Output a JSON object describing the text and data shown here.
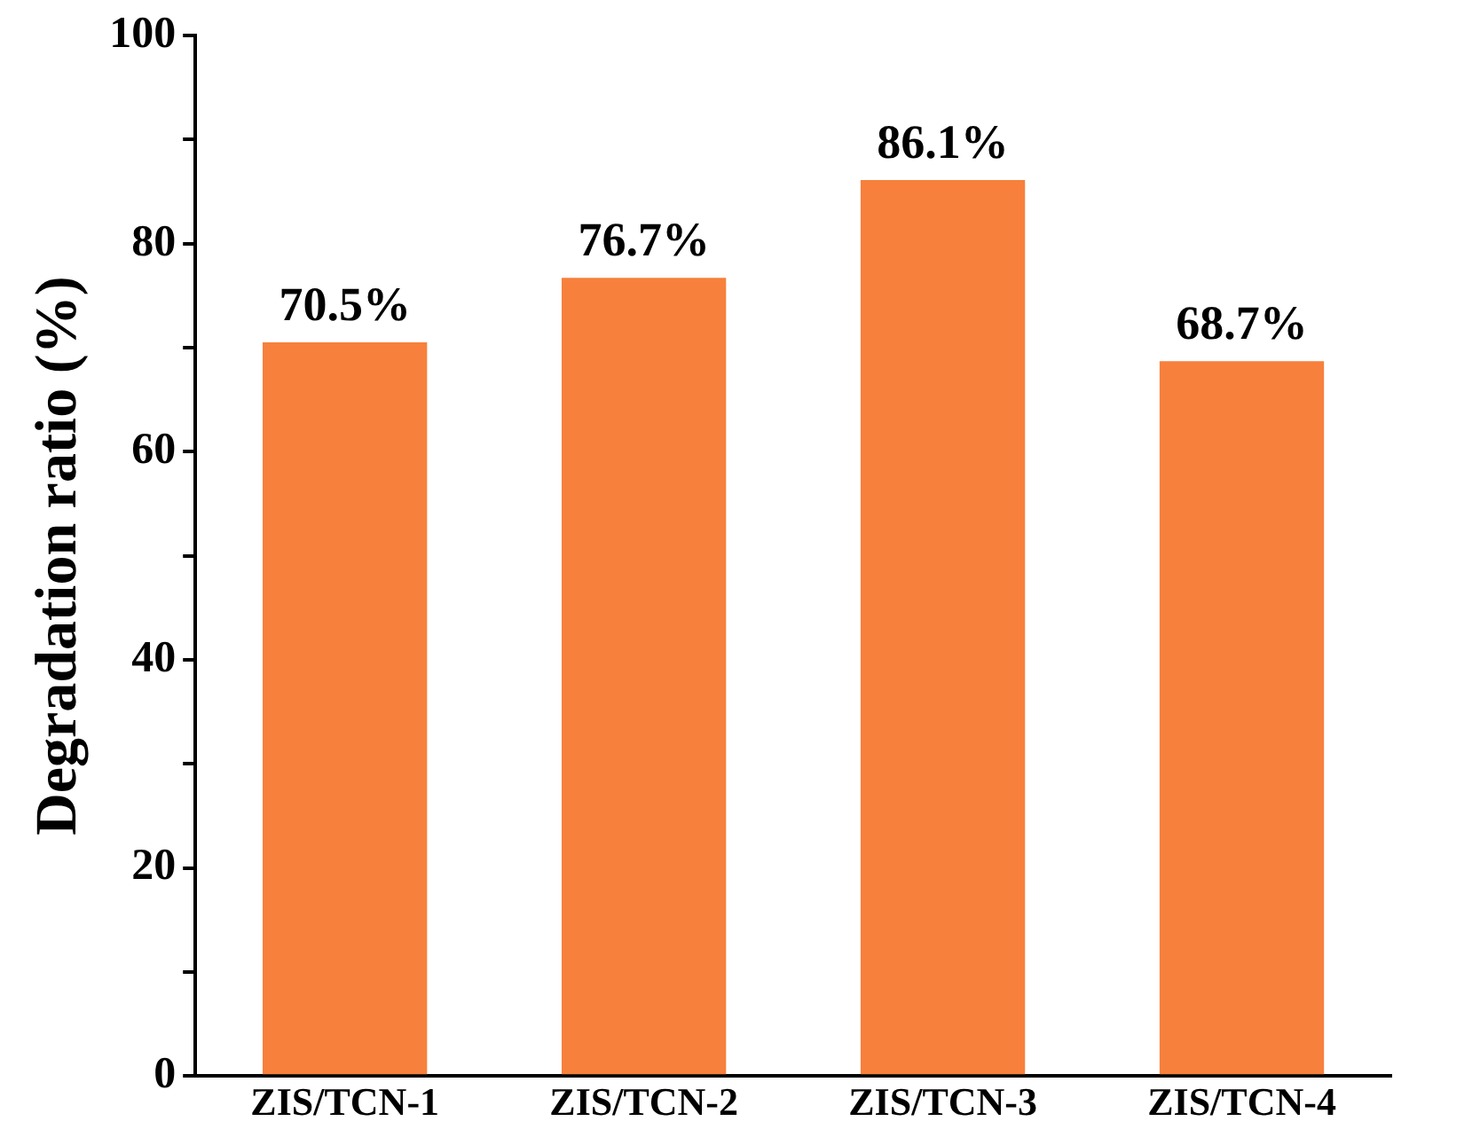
{
  "chart_data": {
    "type": "bar",
    "ylabel": "Degradation ratio (%)",
    "categories": [
      "ZIS/TCN-1",
      "ZIS/TCN-2",
      "ZIS/TCN-3",
      "ZIS/TCN-4"
    ],
    "values": [
      70.5,
      76.7,
      86.1,
      68.7
    ],
    "value_labels": [
      "70.5%",
      "76.7%",
      "86.1%",
      "68.7%"
    ],
    "color": "#f7803c",
    "ylim": [
      0,
      100
    ],
    "yticks": [
      0,
      {
        "value": 10,
        "label": null
      },
      20,
      {
        "value": 30,
        "label": null
      },
      40,
      {
        "value": 50,
        "label": null
      },
      60,
      {
        "value": 70,
        "label": null
      },
      80,
      {
        "value": 90,
        "label": null
      },
      100
    ],
    "legend": false
  }
}
